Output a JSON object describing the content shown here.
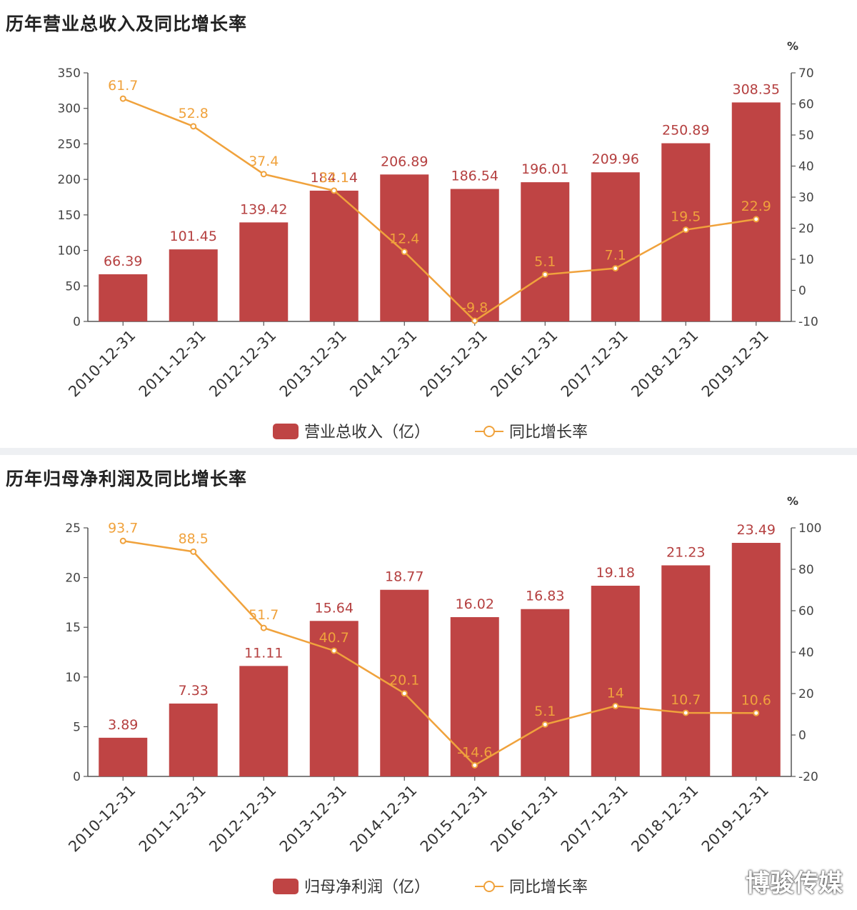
{
  "brand": {
    "name": "博骏传媒",
    "icon": "brand-logo-icon"
  },
  "colors": {
    "bar": "#bf4444",
    "line": "#f0a23c",
    "bar_label": "#b54040",
    "line_label": "#f0a23c",
    "axis": "#555555"
  },
  "chart_data": [
    {
      "type": "bar",
      "title": "历年营业总收入及同比增长率",
      "categories": [
        "2010-12-31",
        "2011-12-31",
        "2012-12-31",
        "2013-12-31",
        "2014-12-31",
        "2015-12-31",
        "2016-12-31",
        "2017-12-31",
        "2018-12-31",
        "2019-12-31"
      ],
      "series": [
        {
          "name": "营业总收入（亿）",
          "type": "bar",
          "axis": "left",
          "values": [
            66.39,
            101.45,
            139.42,
            184.14,
            206.89,
            186.54,
            196.01,
            209.96,
            250.89,
            308.35
          ],
          "labels": [
            "66.39",
            "101.45",
            "139.42",
            "184.14",
            "206.89",
            "186.54",
            "196.01",
            "209.96",
            "250.89",
            "308.35"
          ]
        },
        {
          "name": "同比增长率",
          "type": "line",
          "axis": "right",
          "values": [
            61.7,
            52.8,
            37.4,
            32.1,
            12.4,
            -9.8,
            5.1,
            7.1,
            19.5,
            22.9
          ],
          "labels": [
            "61.7",
            "52.8",
            "37.4",
            "32.1",
            "12.4",
            "-9.8",
            "5.1",
            "7.1",
            "19.5",
            "22.9"
          ]
        }
      ],
      "ylim_left": [
        0,
        350
      ],
      "yticks_left": [
        "0",
        "50",
        "100",
        "150",
        "200",
        "250",
        "300",
        "350"
      ],
      "ylim_right": [
        -10,
        70
      ],
      "yticks_right": [
        "-10",
        "0",
        "10",
        "20",
        "30",
        "40",
        "50",
        "60",
        "70"
      ],
      "y2label": "%",
      "legend": "bottom-center",
      "grid": false
    },
    {
      "type": "bar",
      "title": "历年归母净利润及同比增长率",
      "categories": [
        "2010-12-31",
        "2011-12-31",
        "2012-12-31",
        "2013-12-31",
        "2014-12-31",
        "2015-12-31",
        "2016-12-31",
        "2017-12-31",
        "2018-12-31",
        "2019-12-31"
      ],
      "series": [
        {
          "name": "归母净利润（亿）",
          "type": "bar",
          "axis": "left",
          "values": [
            3.89,
            7.33,
            11.11,
            15.64,
            18.77,
            16.02,
            16.83,
            19.18,
            21.23,
            23.49
          ],
          "labels": [
            "3.89",
            "7.33",
            "11.11",
            "15.64",
            "18.77",
            "16.02",
            "16.83",
            "19.18",
            "21.23",
            "23.49"
          ]
        },
        {
          "name": "同比增长率",
          "type": "line",
          "axis": "right",
          "values": [
            93.7,
            88.5,
            51.7,
            40.7,
            20.1,
            -14.6,
            5.1,
            14,
            10.7,
            10.6
          ],
          "labels": [
            "93.7",
            "88.5",
            "51.7",
            "40.7",
            "20.1",
            "-14.6",
            "5.1",
            "14",
            "10.7",
            "10.6"
          ]
        }
      ],
      "ylim_left": [
        0,
        25
      ],
      "yticks_left": [
        "0",
        "5",
        "10",
        "15",
        "20",
        "25"
      ],
      "ylim_right": [
        -20,
        100
      ],
      "yticks_right": [
        "-20",
        "0",
        "20",
        "40",
        "60",
        "80",
        "100"
      ],
      "y2label": "%",
      "legend": "bottom-center",
      "grid": false
    }
  ]
}
